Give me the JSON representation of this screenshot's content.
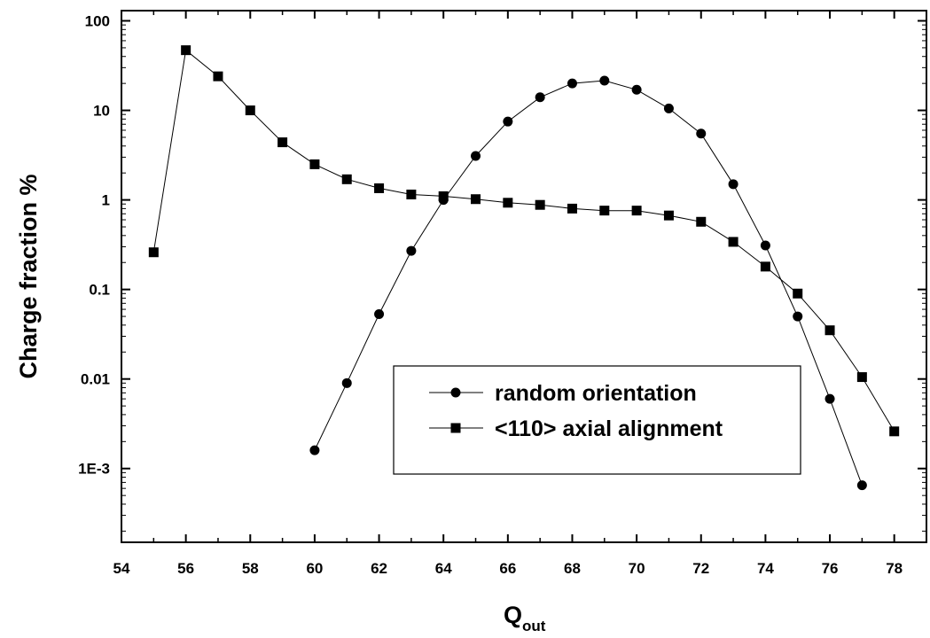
{
  "chart_data": {
    "type": "line",
    "xlabel": "Q",
    "xlabel_subscript": "out",
    "ylabel": "Charge fraction %",
    "yscale": "log",
    "xlim": [
      54,
      79
    ],
    "ylim": [
      0.00015,
      130
    ],
    "x_ticks": [
      54,
      56,
      58,
      60,
      62,
      64,
      66,
      68,
      70,
      72,
      74,
      76,
      78
    ],
    "x_tick_labels": [
      "54",
      "56",
      "58",
      "60",
      "62",
      "64",
      "66",
      "68",
      "70",
      "72",
      "74",
      "76",
      "78"
    ],
    "y_ticks": [
      0.001,
      0.01,
      0.1,
      1,
      10,
      100
    ],
    "y_tick_labels": [
      "1E-3",
      "0.01",
      "0.1",
      "1",
      "10",
      "100"
    ],
    "legend_position": "lower-center",
    "series": [
      {
        "name": "random orientation",
        "marker": "circle",
        "color": "#000000",
        "x": [
          60,
          61,
          62,
          63,
          64,
          65,
          66,
          67,
          68,
          69,
          70,
          71,
          72,
          73,
          74,
          75,
          76,
          77
        ],
        "y": [
          0.0016,
          0.009,
          0.053,
          0.27,
          1.0,
          3.1,
          7.5,
          14,
          20,
          21.5,
          17,
          10.5,
          5.5,
          1.5,
          0.31,
          0.05,
          0.006,
          0.00065
        ]
      },
      {
        "name": "<110> axial alignment",
        "marker": "square",
        "color": "#000000",
        "x": [
          55,
          56,
          57,
          58,
          59,
          60,
          61,
          62,
          63,
          64,
          65,
          66,
          67,
          68,
          69,
          70,
          71,
          72,
          73,
          74,
          75,
          76,
          77,
          78
        ],
        "y": [
          0.26,
          47,
          24,
          10,
          4.4,
          2.5,
          1.7,
          1.35,
          1.15,
          1.1,
          1.02,
          0.93,
          0.88,
          0.8,
          0.76,
          0.76,
          0.67,
          0.57,
          0.34,
          0.18,
          0.09,
          0.035,
          0.0105,
          0.0026
        ]
      }
    ]
  }
}
